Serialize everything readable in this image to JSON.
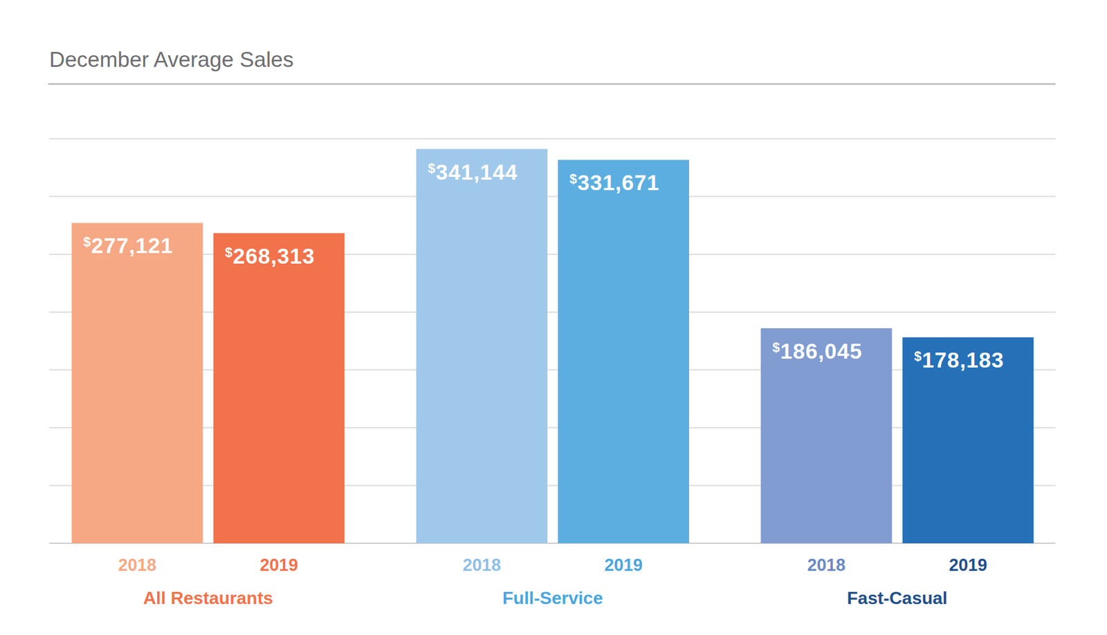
{
  "chart_data": {
    "type": "bar",
    "title": "December Average Sales",
    "categories": [
      "All Restaurants",
      "Full-Service",
      "Fast-Casual"
    ],
    "series": [
      {
        "name": "2018",
        "colors": [
          "#f6a885",
          "#a0c8ea",
          "#809cd0"
        ],
        "values": [
          277121,
          341144,
          186045
        ],
        "value_labels": [
          "$277,121",
          "$341,144",
          "$186,045"
        ]
      },
      {
        "name": "2019",
        "colors": [
          "#f2724c",
          "#5daee0",
          "#2670b8"
        ],
        "values": [
          268313,
          331671,
          178183
        ],
        "value_labels": [
          "$268,313",
          "$331,671",
          "$178,183"
        ]
      }
    ],
    "ylim": [
      0,
      350000
    ],
    "yticks": [
      0,
      50000,
      100000,
      150000,
      200000,
      250000,
      300000,
      350000
    ],
    "grid": true,
    "data_labels": true,
    "tick_labels": false
  }
}
